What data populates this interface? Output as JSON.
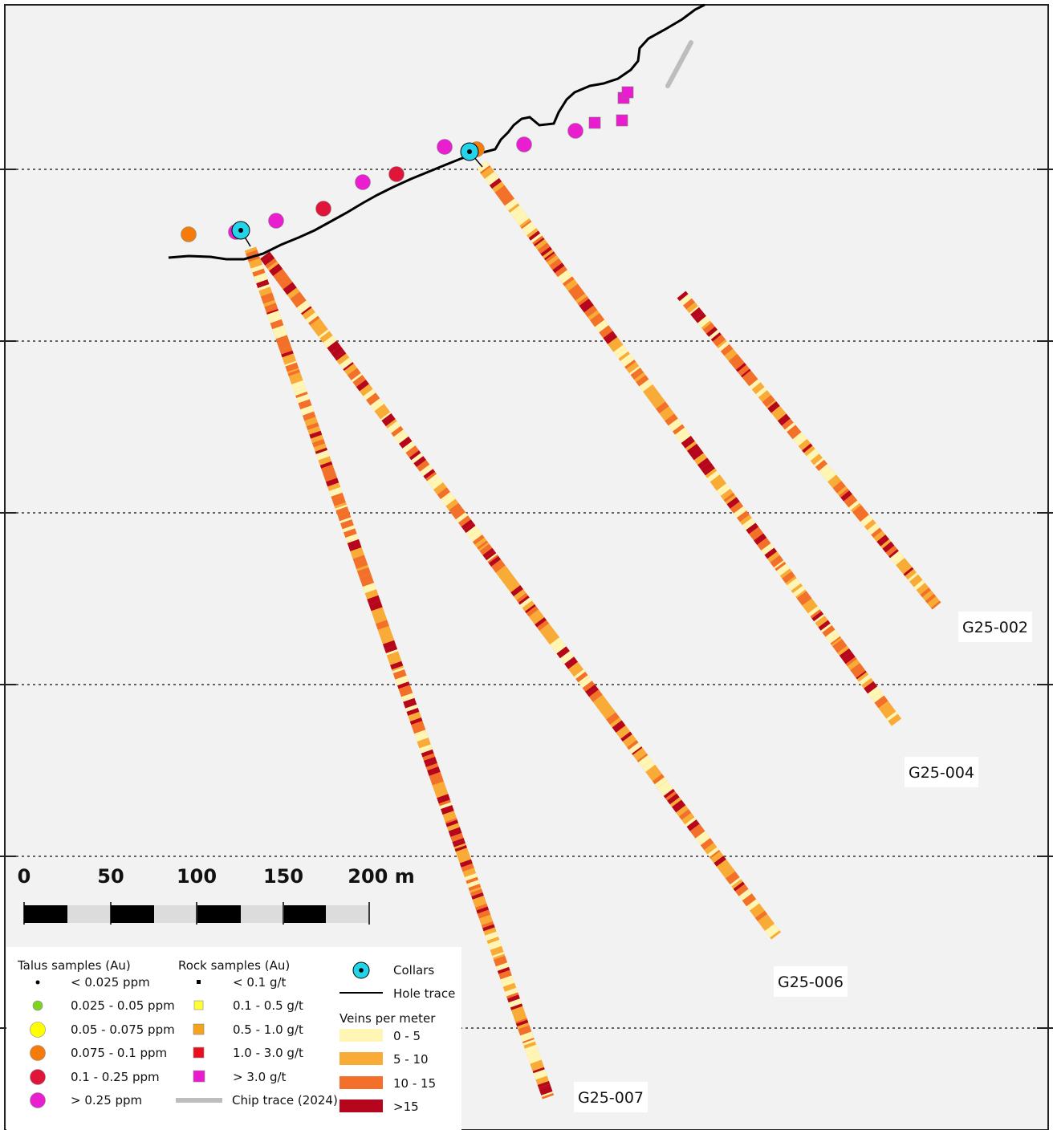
{
  "hole_labels": [
    {
      "id": "g25-002",
      "text": "G25-002"
    },
    {
      "id": "g25-004",
      "text": "G25-004"
    },
    {
      "id": "g25-006",
      "text": "G25-006"
    },
    {
      "id": "g25-007",
      "text": "G25-007"
    }
  ],
  "scale_bar": {
    "ticks": [
      "0",
      "50",
      "100",
      "150"
    ],
    "end_label": "200 m"
  },
  "legend": {
    "talus": {
      "title": "Talus samples (Au)",
      "items": [
        {
          "label": "< 0.025 ppm",
          "color": "#000000"
        },
        {
          "label": "0.025 - 0.05 ppm",
          "color": "#7ed321"
        },
        {
          "label": "0.05 - 0.075 ppm",
          "color": "#ffff00"
        },
        {
          "label": "0.075 - 0.1 ppm",
          "color": "#f57c0a"
        },
        {
          "label": "0.1 - 0.25 ppm",
          "color": "#e0153a"
        },
        {
          "label": "> 0.25 ppm",
          "color": "#e91ecf"
        }
      ]
    },
    "rock": {
      "title": "Rock samples (Au)",
      "items": [
        {
          "label": "< 0.1 g/t",
          "color": "#000000"
        },
        {
          "label": "0.1 - 0.5 g/t",
          "color": "#ffff33"
        },
        {
          "label": "0.5 - 1.0 g/t",
          "color": "#f5a21c"
        },
        {
          "label": "1.0 - 3.0 g/t",
          "color": "#e8101c"
        },
        {
          "label": "> 3.0 g/t",
          "color": "#ea1ccf"
        }
      ],
      "chip_trace": "Chip trace (2024)"
    },
    "collars": "Collars",
    "hole_trace": "Hole trace",
    "veins": {
      "title": "Veins per meter",
      "items": [
        {
          "label": "0 - 5",
          "color": "#fff6b5"
        },
        {
          "label": "5 - 10",
          "color": "#f9ab38"
        },
        {
          "label": "10 - 15",
          "color": "#f2702a"
        },
        {
          "label": ">15",
          "color": "#b5061d"
        }
      ]
    }
  },
  "colors": {
    "background": "#f2f2f2",
    "collar": "#22d3ea",
    "chip_trace": "#bdbdbd",
    "grid": "#333333"
  }
}
